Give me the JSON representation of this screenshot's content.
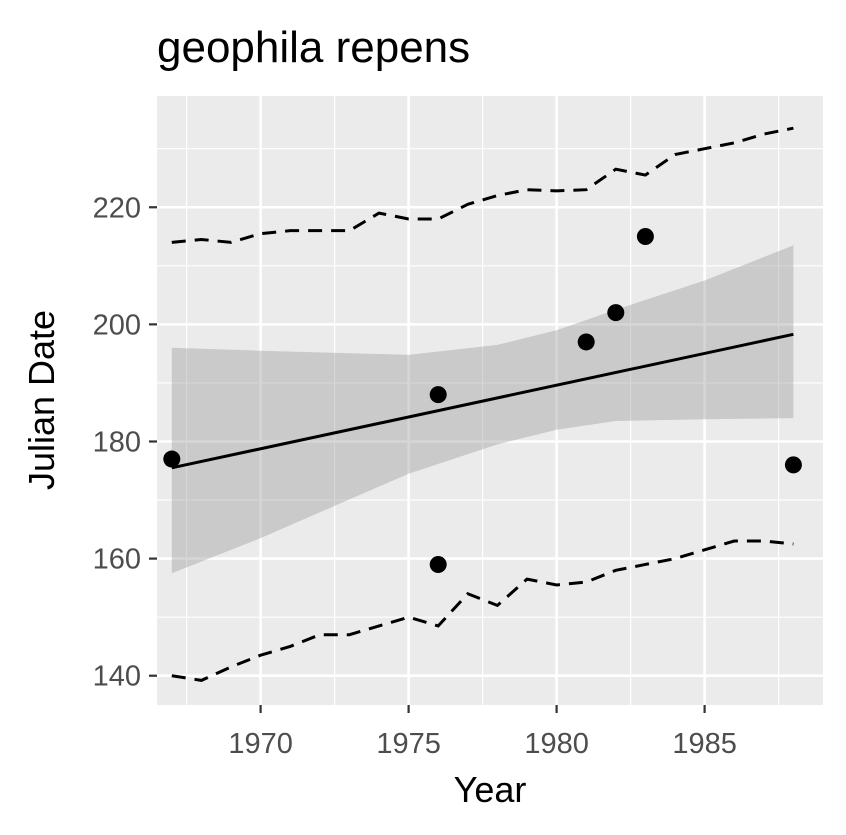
{
  "chart_data": {
    "type": "scatter",
    "title": "geophila repens",
    "xlabel": "Year",
    "ylabel": "Julian Date",
    "xlim": [
      1966.5,
      1989
    ],
    "ylim": [
      135,
      239
    ],
    "x_ticks": [
      1970,
      1975,
      1980,
      1985
    ],
    "y_ticks": [
      140,
      160,
      180,
      200,
      220
    ],
    "x_tick_labels": [
      "1970",
      "1975",
      "1980",
      "1985"
    ],
    "y_tick_labels": [
      "140",
      "160",
      "180",
      "200",
      "220"
    ],
    "grid": true,
    "points": [
      {
        "x": 1967,
        "y": 177
      },
      {
        "x": 1976,
        "y": 188
      },
      {
        "x": 1976,
        "y": 159
      },
      {
        "x": 1981,
        "y": 197
      },
      {
        "x": 1982,
        "y": 202
      },
      {
        "x": 1983,
        "y": 215
      },
      {
        "x": 1988,
        "y": 176
      }
    ],
    "fit_line": {
      "x": [
        1967,
        1988
      ],
      "y": [
        175.5,
        198.3
      ]
    },
    "confidence_band": {
      "x": [
        1967,
        1970,
        1975,
        1978,
        1980,
        1982,
        1985,
        1988
      ],
      "lower": [
        157.5,
        163.5,
        174.5,
        179.5,
        182,
        183.5,
        183.8,
        184
      ],
      "upper": [
        196,
        195.5,
        194.8,
        196.5,
        199,
        202.5,
        207.5,
        213.5
      ]
    },
    "upper_quantile": {
      "x": [
        1967,
        1968,
        1969,
        1970,
        1971,
        1972,
        1973,
        1974,
        1975,
        1976,
        1977,
        1978,
        1979,
        1980,
        1981,
        1982,
        1983,
        1984,
        1985,
        1986,
        1987,
        1988
      ],
      "y": [
        214,
        214.5,
        214,
        215.5,
        216,
        216,
        216,
        219,
        218,
        218,
        220.5,
        222,
        223,
        222.8,
        223,
        226.5,
        225.5,
        229,
        230,
        231,
        232.5,
        233.5
      ]
    },
    "lower_quantile": {
      "x": [
        1967,
        1968,
        1969,
        1970,
        1971,
        1972,
        1973,
        1974,
        1975,
        1976,
        1977,
        1978,
        1979,
        1980,
        1981,
        1982,
        1983,
        1984,
        1985,
        1986,
        1987,
        1988
      ],
      "y": [
        140,
        139.2,
        141.5,
        143.5,
        145,
        147,
        147,
        148.5,
        150,
        148.5,
        154,
        152,
        156.5,
        155.5,
        156,
        158,
        159,
        160,
        161.5,
        163,
        163,
        162.5
      ]
    },
    "colors": {
      "panel": "#ebebeb",
      "grid_major": "#ffffff",
      "point": "#000000",
      "line": "#000000",
      "band": "#999999"
    }
  }
}
